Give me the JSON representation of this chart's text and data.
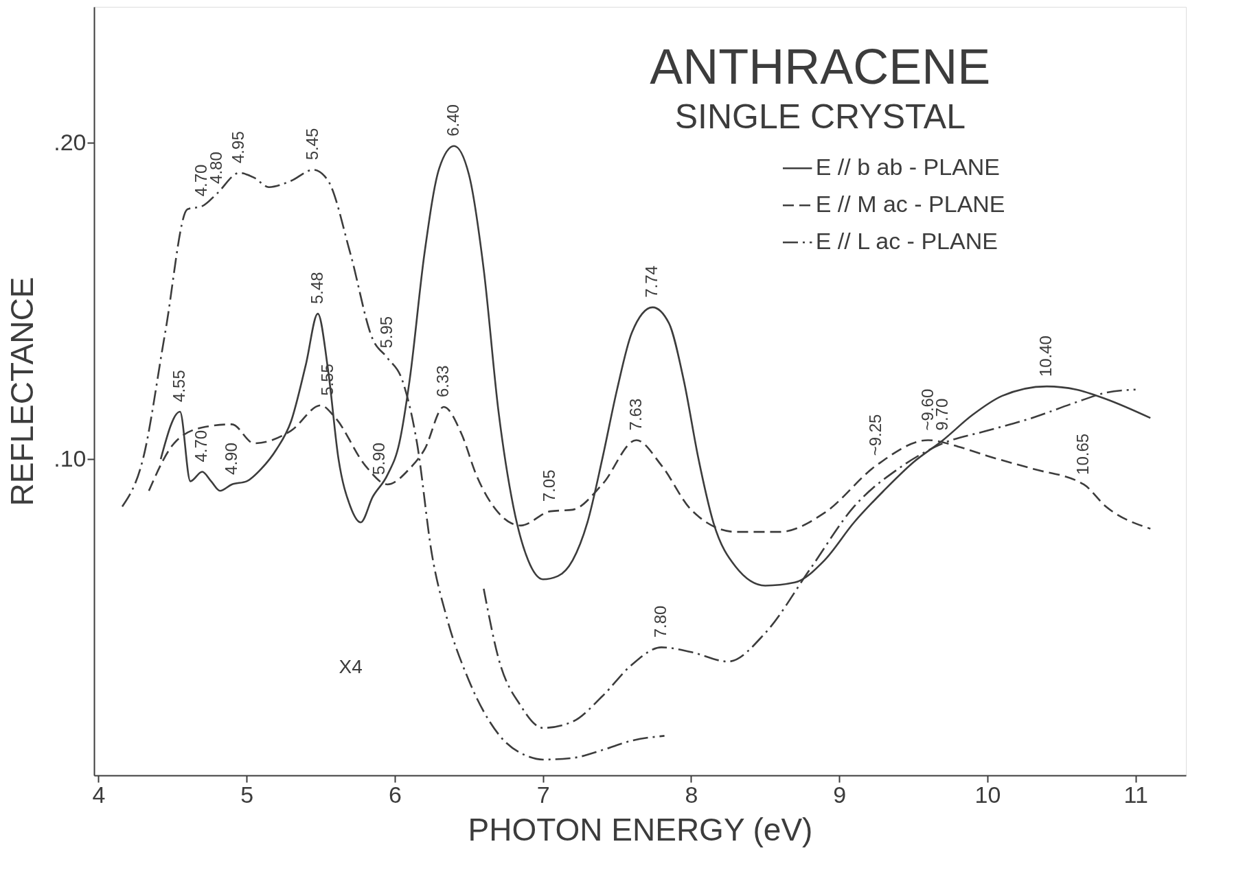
{
  "chart_data": {
    "type": "line",
    "title": "ANTHRACENE",
    "subtitle": "SINGLE CRYSTAL",
    "xlabel": "PHOTON ENERGY (eV)",
    "ylabel": "REFLECTANCE",
    "xlim": [
      3.97,
      11.34
    ],
    "ylim": [
      0.0,
      0.243
    ],
    "xticks": [
      4,
      5,
      6,
      7,
      8,
      9,
      10,
      11
    ],
    "yticks": [
      {
        "value": 0.1,
        "label": ".10"
      },
      {
        "value": 0.2,
        "label": ".20"
      }
    ],
    "grid": false,
    "legend": "top right",
    "marker": "none",
    "series": [
      {
        "name": "E // b  ab - PLANE",
        "color": "#3c3c3c",
        "line_style": "solid",
        "x": [
          4.42,
          4.55,
          4.62,
          4.7,
          4.76,
          4.82,
          4.9,
          5.0,
          5.1,
          5.2,
          5.3,
          5.4,
          5.48,
          5.55,
          5.62,
          5.7,
          5.77,
          5.85,
          5.95,
          6.03,
          6.1,
          6.2,
          6.3,
          6.4,
          6.5,
          6.6,
          6.7,
          6.8,
          6.9,
          7.0,
          7.1,
          7.2,
          7.3,
          7.4,
          7.5,
          7.6,
          7.74,
          7.85,
          7.95,
          8.05,
          8.15,
          8.3,
          8.5,
          8.7,
          8.9,
          9.1,
          9.3,
          9.5,
          9.7,
          9.9,
          10.1,
          10.4,
          10.6,
          10.8,
          11.1
        ],
        "values": [
          0.1,
          0.115,
          0.093,
          0.096,
          0.093,
          0.09,
          0.092,
          0.093,
          0.097,
          0.103,
          0.112,
          0.13,
          0.146,
          0.128,
          0.1,
          0.085,
          0.08,
          0.088,
          0.095,
          0.105,
          0.125,
          0.165,
          0.192,
          0.199,
          0.19,
          0.16,
          0.115,
          0.085,
          0.068,
          0.062,
          0.063,
          0.068,
          0.08,
          0.1,
          0.122,
          0.14,
          0.148,
          0.143,
          0.125,
          0.1,
          0.08,
          0.066,
          0.06,
          0.061,
          0.068,
          0.08,
          0.09,
          0.099,
          0.106,
          0.114,
          0.12,
          0.123,
          0.122,
          0.119,
          0.113
        ]
      },
      {
        "name": "E // M  ac - PLANE",
        "color": "#3c3c3c",
        "line_style": "dashed",
        "x": [
          4.34,
          4.51,
          4.7,
          4.9,
          5.05,
          5.3,
          5.5,
          5.6,
          5.8,
          5.95,
          6.1,
          6.2,
          6.33,
          6.45,
          6.55,
          6.7,
          6.85,
          7.05,
          7.2,
          7.4,
          7.63,
          7.8,
          8.0,
          8.3,
          8.6,
          8.9,
          9.25,
          9.6,
          9.8,
          10.0,
          10.3,
          10.65,
          10.8,
          11.1
        ],
        "values": [
          0.09,
          0.105,
          0.11,
          0.111,
          0.105,
          0.109,
          0.117,
          0.113,
          0.098,
          0.092,
          0.097,
          0.103,
          0.1165,
          0.108,
          0.095,
          0.083,
          0.079,
          0.0835,
          0.084,
          0.092,
          0.106,
          0.098,
          0.084,
          0.077,
          0.077,
          0.083,
          0.098,
          0.106,
          0.104,
          0.101,
          0.097,
          0.092,
          0.085,
          0.078
        ]
      },
      {
        "name": "E // L  ac - PLANE",
        "color": "#3c3c3c",
        "line_style": "dashdot",
        "x": [
          4.16,
          4.3,
          4.45,
          4.6,
          4.7,
          4.8,
          4.95,
          5.05,
          5.15,
          5.3,
          5.45,
          5.55,
          5.7,
          5.85,
          5.95,
          6.05,
          6.15,
          6.25,
          6.35,
          6.5,
          6.7,
          6.9,
          7.0,
          7.2,
          7.4,
          7.6,
          7.82
        ],
        "values": [
          0.085,
          0.1,
          0.14,
          0.179,
          0.18,
          0.184,
          0.1905,
          0.189,
          0.186,
          0.188,
          0.1915,
          0.188,
          0.165,
          0.138,
          0.132,
          0.125,
          0.105,
          0.07,
          0.05,
          0.03,
          0.013,
          0.006,
          0.005,
          0.0055,
          0.008,
          0.011,
          0.0125
        ]
      },
      {
        "color": "#3c3c3c",
        "line_style": "dashdot",
        "x": [
          6.6,
          6.7,
          6.85,
          7.0,
          7.2,
          7.4,
          7.6,
          7.8,
          8.0,
          8.25,
          8.5,
          8.8,
          9.1,
          9.4,
          9.7,
          10.0,
          10.3,
          10.6,
          10.8,
          11.0
        ],
        "values": [
          0.059,
          0.037,
          0.022,
          0.015,
          0.017,
          0.025,
          0.035,
          0.0405,
          0.039,
          0.036,
          0.045,
          0.065,
          0.085,
          0.097,
          0.105,
          0.109,
          0.113,
          0.118,
          0.121,
          0.122
        ]
      }
    ],
    "annotations": [
      {
        "text": "4.55",
        "x": 4.55,
        "y": 0.115
      },
      {
        "text": "4.70",
        "x": 4.7,
        "y": 0.096
      },
      {
        "text": "4.90",
        "x": 4.9,
        "y": 0.092
      },
      {
        "text": "4.70",
        "x": 4.7,
        "y": 0.18
      },
      {
        "text": "4.80",
        "x": 4.8,
        "y": 0.184
      },
      {
        "text": "4.95",
        "x": 4.95,
        "y": 0.1905
      },
      {
        "text": "5.45",
        "x": 5.45,
        "y": 0.1915
      },
      {
        "text": "5.48",
        "x": 5.48,
        "y": 0.146
      },
      {
        "text": "5.55",
        "x": 5.55,
        "y": 0.117
      },
      {
        "text": "5.95",
        "x": 5.95,
        "y": 0.132
      },
      {
        "text": "5.90",
        "x": 5.9,
        "y": 0.092
      },
      {
        "text": "6.40",
        "x": 6.4,
        "y": 0.199
      },
      {
        "text": "6.33",
        "x": 6.33,
        "y": 0.1165
      },
      {
        "text": "7.05",
        "x": 7.05,
        "y": 0.0835
      },
      {
        "text": "7.63",
        "x": 7.63,
        "y": 0.106
      },
      {
        "text": "7.74",
        "x": 7.74,
        "y": 0.148
      },
      {
        "text": "7.80",
        "x": 7.8,
        "y": 0.0405
      },
      {
        "text": "~9.25",
        "x": 9.25,
        "y": 0.098
      },
      {
        "text": "~9.60",
        "x": 9.6,
        "y": 0.106
      },
      {
        "text": "9.70",
        "x": 9.7,
        "y": 0.106
      },
      {
        "text": "10.40",
        "x": 10.4,
        "y": 0.123
      },
      {
        "text": "10.65",
        "x": 10.65,
        "y": 0.092
      },
      "X4"
    ]
  }
}
